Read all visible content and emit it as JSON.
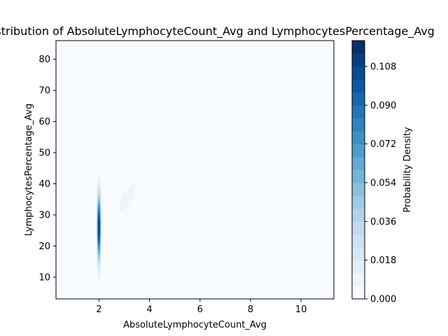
{
  "chart_data": {
    "type": "heatmap",
    "subtype": "filled-contour-kde",
    "title": "Joint Distribution of AbsoluteLymphocyteCount_Avg and LymphocytesPercentage_Avg",
    "xlabel": "AbsoluteLymphocyteCount_Avg",
    "ylabel": "LymphocytesPercentage_Avg",
    "xlim": [
      0.3,
      11.3
    ],
    "ylim": [
      3,
      86
    ],
    "xticks": [
      2,
      4,
      6,
      8,
      10
    ],
    "yticks": [
      10,
      20,
      30,
      40,
      50,
      60,
      70,
      80
    ],
    "grid": false,
    "colormap": "Blues",
    "colorbar": {
      "label": "Probability Density",
      "min": 0.0,
      "max": 0.12,
      "levels": 20,
      "ticks": [
        "0.000",
        "0.018",
        "0.036",
        "0.054",
        "0.072",
        "0.090",
        "0.108"
      ]
    },
    "components": [
      {
        "x": 2.0,
        "y": 26.0,
        "sx": 0.05,
        "sy": 7.0,
        "rho": 0.0,
        "peak": 0.12
      },
      {
        "x": 3.1,
        "y": 35.5,
        "sx": 0.35,
        "sy": 4.5,
        "rho": 0.8,
        "peak": 0.009
      }
    ]
  }
}
